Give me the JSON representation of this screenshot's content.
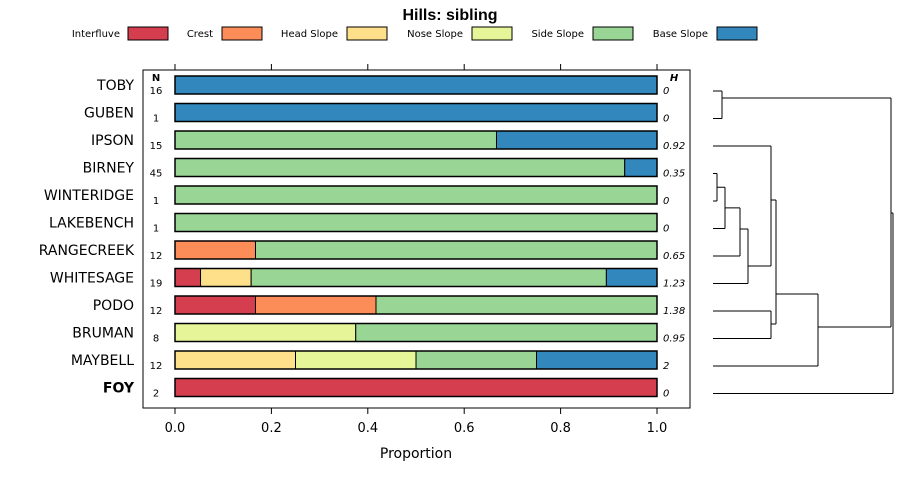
{
  "chart_data": {
    "type": "bar",
    "orientation": "horizontal",
    "stacked": true,
    "title": "Hills: sibling",
    "xlabel": "Proportion",
    "ylabel": "",
    "xlim": [
      0,
      1
    ],
    "x_ticks": [
      "0.0",
      "0.2",
      "0.4",
      "0.6",
      "0.8",
      "1.0"
    ],
    "x_tick_values": [
      0,
      0.2,
      0.4,
      0.6,
      0.8,
      1.0
    ],
    "n_header": "N",
    "h_header": "H",
    "legend_position": "top",
    "series": [
      {
        "name": "Interfluve",
        "color": "#d53e4f"
      },
      {
        "name": "Crest",
        "color": "#fc8d59"
      },
      {
        "name": "Head Slope",
        "color": "#fee08b"
      },
      {
        "name": "Nose Slope",
        "color": "#e6f598"
      },
      {
        "name": "Side Slope",
        "color": "#99d594"
      },
      {
        "name": "Base Slope",
        "color": "#3288bd"
      }
    ],
    "rows": [
      {
        "label": "TOBY",
        "n": "16",
        "h": "0",
        "bold": false,
        "values": [
          0,
          0,
          0,
          0,
          0,
          1
        ]
      },
      {
        "label": "GUBEN",
        "n": "1",
        "h": "0",
        "bold": false,
        "values": [
          0,
          0,
          0,
          0,
          0,
          1
        ]
      },
      {
        "label": "IPSON",
        "n": "15",
        "h": "0.92",
        "bold": false,
        "values": [
          0,
          0,
          0,
          0,
          0.667,
          0.333
        ]
      },
      {
        "label": "BIRNEY",
        "n": "45",
        "h": "0.35",
        "bold": false,
        "values": [
          0,
          0,
          0,
          0,
          0.933,
          0.067
        ]
      },
      {
        "label": "WINTERIDGE",
        "n": "1",
        "h": "0",
        "bold": false,
        "values": [
          0,
          0,
          0,
          0,
          1,
          0
        ]
      },
      {
        "label": "LAKEBENCH",
        "n": "1",
        "h": "0",
        "bold": false,
        "values": [
          0,
          0,
          0,
          0,
          1,
          0
        ]
      },
      {
        "label": "RANGECREEK",
        "n": "12",
        "h": "0.65",
        "bold": false,
        "values": [
          0,
          0.167,
          0,
          0,
          0.833,
          0
        ]
      },
      {
        "label": "WHITESAGE",
        "n": "19",
        "h": "1.23",
        "bold": false,
        "values": [
          0.053,
          0,
          0.105,
          0,
          0.737,
          0.105
        ]
      },
      {
        "label": "PODO",
        "n": "12",
        "h": "1.38",
        "bold": false,
        "values": [
          0.167,
          0.25,
          0,
          0,
          0.583,
          0
        ]
      },
      {
        "label": "BRUMAN",
        "n": "8",
        "h": "0.95",
        "bold": false,
        "values": [
          0,
          0,
          0,
          0.375,
          0.625,
          0
        ]
      },
      {
        "label": "MAYBELL",
        "n": "12",
        "h": "2",
        "bold": false,
        "values": [
          0,
          0,
          0.25,
          0.25,
          0.25,
          0.25
        ]
      },
      {
        "label": "FOY",
        "n": "2",
        "h": "0",
        "bold": true,
        "values": [
          1,
          0,
          0,
          0,
          0,
          0
        ]
      }
    ],
    "dendrogram": {
      "type": "hierarchical-clustering",
      "merge_heights": [
        0,
        0.05,
        0.08,
        0.12,
        0.2,
        0.45,
        0.6,
        0.7,
        1.0,
        1.1,
        1.1
      ]
    }
  }
}
